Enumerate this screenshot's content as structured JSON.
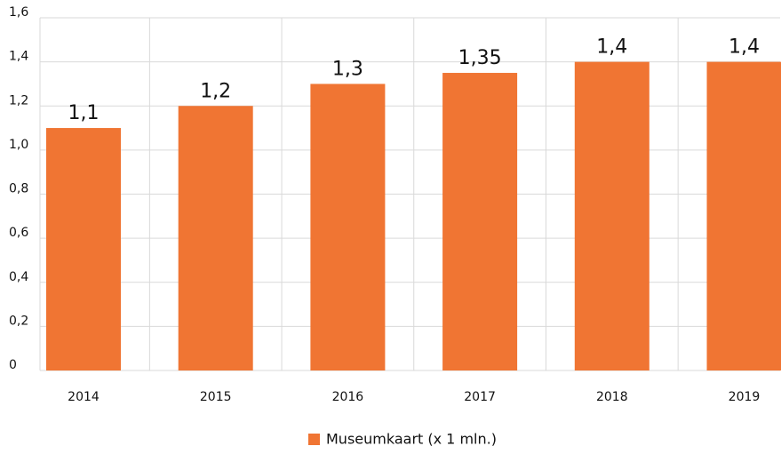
{
  "chart_data": {
    "type": "bar",
    "categories": [
      "2014",
      "2015",
      "2016",
      "2017",
      "2018",
      "2019"
    ],
    "series": [
      {
        "name": "Museumkaart (x 1 mln.)",
        "color": "#f07533",
        "values": [
          1.1,
          1.2,
          1.3,
          1.35,
          1.4,
          1.4
        ],
        "value_labels": [
          "1,1",
          "1,2",
          "1,3",
          "1,35",
          "1,4",
          "1,4"
        ]
      }
    ],
    "ylim": [
      0,
      1.6
    ],
    "yticks": [
      0,
      {
        "value": 0.2,
        "label": "0,2"
      },
      {
        "value": 0.4,
        "label": "0,4"
      },
      {
        "value": 0.6,
        "label": "0,6"
      },
      {
        "value": 0.8,
        "label": "0,8"
      },
      {
        "value": 1.0,
        "label": "1,0"
      },
      {
        "value": 1.2,
        "label": "1,2"
      },
      {
        "value": 1.4,
        "label": "1,4"
      },
      {
        "value": 1.6,
        "label": "1,6"
      }
    ],
    "grid": true,
    "legend": "bottom"
  }
}
